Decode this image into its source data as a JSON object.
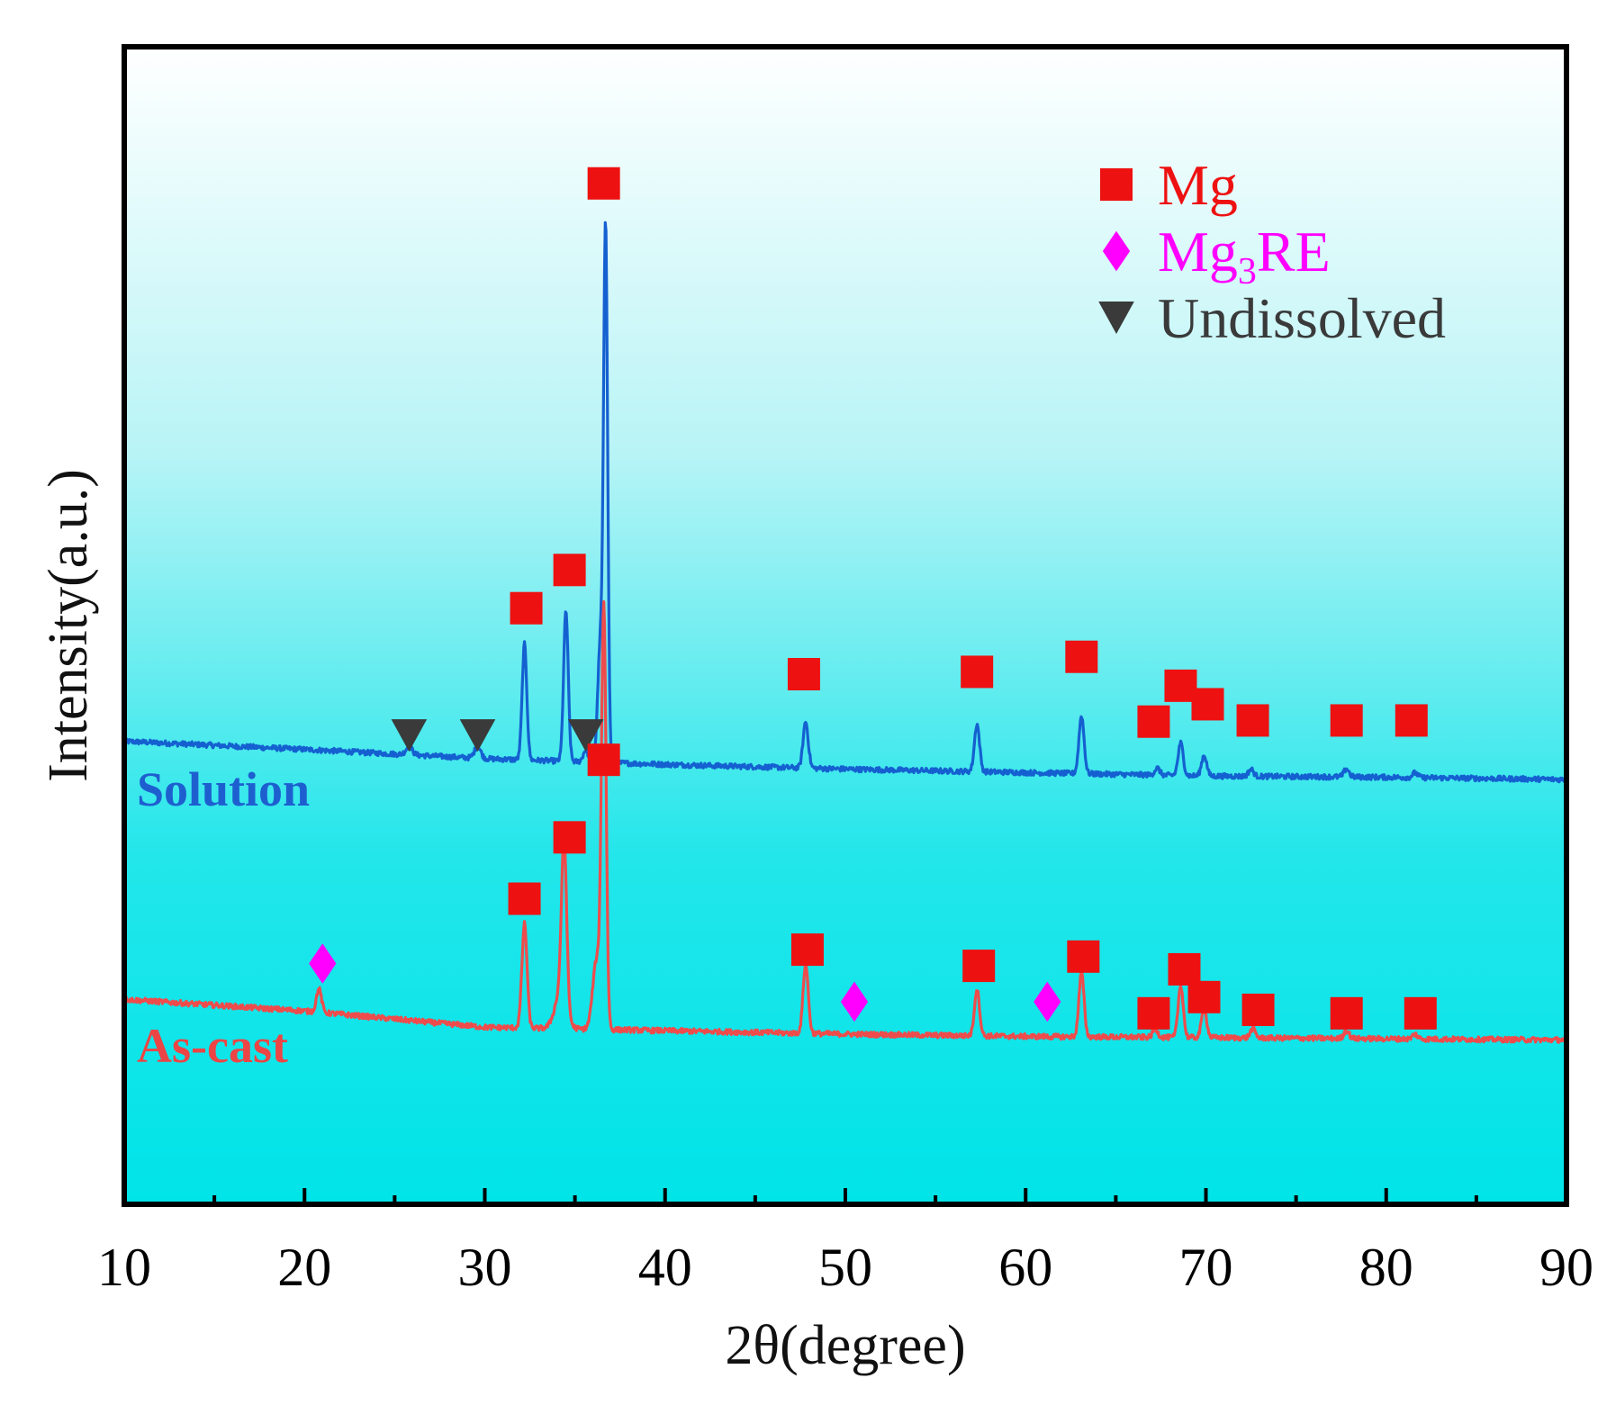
{
  "chart_data": {
    "type": "line",
    "title": "",
    "xlabel": "2θ(degree)",
    "ylabel": "Intensity(a.u.)",
    "xlim": [
      10,
      90
    ],
    "ylim": [
      0,
      100
    ],
    "x_ticks": [
      10,
      20,
      30,
      40,
      50,
      60,
      70,
      80,
      90
    ],
    "y_ticks_shown": false,
    "grid": false,
    "legend_position": "top-right",
    "background_gradient": [
      "#ffffff",
      "#00e8ec"
    ],
    "legend": [
      {
        "marker": "square",
        "color": "#ee1111",
        "label": "Mg",
        "label_main": "Mg",
        "label_sub": "",
        "label_tail": ""
      },
      {
        "marker": "diamond",
        "color": "#ff00ff",
        "label": "Mg3RE",
        "label_main": "Mg",
        "label_sub": "3",
        "label_tail": "RE"
      },
      {
        "marker": "triangle-down",
        "color": "#3a3a3a",
        "label": "Undissolved",
        "label_main": "Undissolved",
        "label_sub": "",
        "label_tail": ""
      }
    ],
    "series": [
      {
        "name": "Solution",
        "color": "#1560d0",
        "label_color": "#1e5fd0",
        "baseline": [
          [
            10,
            40.0
          ],
          [
            20,
            39.3
          ],
          [
            30,
            38.5
          ],
          [
            40,
            38.0
          ],
          [
            50,
            37.6
          ],
          [
            60,
            37.3
          ],
          [
            70,
            37.0
          ],
          [
            80,
            36.9
          ],
          [
            90,
            36.7
          ]
        ],
        "peaks": [
          {
            "x": 25.8,
            "h": 0.7,
            "w": 0.25
          },
          {
            "x": 29.6,
            "h": 1.0,
            "w": 0.25
          },
          {
            "x": 32.2,
            "h": 10.0,
            "w": 0.18
          },
          {
            "x": 34.5,
            "h": 13.0,
            "w": 0.18
          },
          {
            "x": 35.6,
            "h": 1.0,
            "w": 0.2
          },
          {
            "x": 36.7,
            "h": 46.0,
            "w": 0.16
          },
          {
            "x": 36.4,
            "h": 10.0,
            "w": 0.2
          },
          {
            "x": 47.8,
            "h": 4.0,
            "w": 0.2
          },
          {
            "x": 57.3,
            "h": 4.1,
            "w": 0.2
          },
          {
            "x": 63.1,
            "h": 5.0,
            "w": 0.2
          },
          {
            "x": 67.3,
            "h": 0.6,
            "w": 0.2
          },
          {
            "x": 68.6,
            "h": 2.8,
            "w": 0.2
          },
          {
            "x": 69.9,
            "h": 1.8,
            "w": 0.2
          },
          {
            "x": 72.5,
            "h": 0.6,
            "w": 0.2
          },
          {
            "x": 77.8,
            "h": 0.7,
            "w": 0.2
          },
          {
            "x": 81.6,
            "h": 0.4,
            "w": 0.2
          }
        ],
        "markers": [
          {
            "type": "triangle-down",
            "x": 25.8,
            "y": 40.5
          },
          {
            "type": "triangle-down",
            "x": 29.6,
            "y": 40.5
          },
          {
            "type": "triangle-down",
            "x": 35.6,
            "y": 40.5
          },
          {
            "type": "square",
            "x": 32.3,
            "y": 51.5
          },
          {
            "type": "square",
            "x": 34.7,
            "y": 54.8
          },
          {
            "type": "square",
            "x": 36.6,
            "y": 88.2
          },
          {
            "type": "square",
            "x": 47.7,
            "y": 45.8
          },
          {
            "type": "square",
            "x": 57.3,
            "y": 46.0
          },
          {
            "type": "square",
            "x": 63.1,
            "y": 47.3
          },
          {
            "type": "square",
            "x": 67.1,
            "y": 41.7
          },
          {
            "type": "square",
            "x": 68.6,
            "y": 44.8
          },
          {
            "type": "square",
            "x": 70.1,
            "y": 43.2
          },
          {
            "type": "square",
            "x": 72.6,
            "y": 41.8
          },
          {
            "type": "square",
            "x": 77.8,
            "y": 41.8
          },
          {
            "type": "square",
            "x": 81.4,
            "y": 41.8
          }
        ]
      },
      {
        "name": "As-cast",
        "color": "#ee4c4c",
        "label_color": "#ec4545",
        "baseline": [
          [
            10,
            17.7
          ],
          [
            20,
            16.7
          ],
          [
            30,
            15.3
          ],
          [
            40,
            15.0
          ],
          [
            50,
            14.7
          ],
          [
            60,
            14.5
          ],
          [
            70,
            14.4
          ],
          [
            80,
            14.3
          ],
          [
            90,
            14.2
          ]
        ],
        "peaks": [
          {
            "x": 20.8,
            "h": 2.0,
            "w": 0.2
          },
          {
            "x": 32.2,
            "h": 9.0,
            "w": 0.2
          },
          {
            "x": 34.4,
            "h": 14.0,
            "w": 0.2
          },
          {
            "x": 34.2,
            "h": 3.0,
            "w": 0.45
          },
          {
            "x": 36.6,
            "h": 36.0,
            "w": 0.18
          },
          {
            "x": 36.2,
            "h": 6.0,
            "w": 0.3
          },
          {
            "x": 47.8,
            "h": 6.0,
            "w": 0.2
          },
          {
            "x": 57.3,
            "h": 4.0,
            "w": 0.2
          },
          {
            "x": 63.1,
            "h": 5.5,
            "w": 0.2
          },
          {
            "x": 67.2,
            "h": 0.7,
            "w": 0.2
          },
          {
            "x": 68.6,
            "h": 4.5,
            "w": 0.2
          },
          {
            "x": 69.9,
            "h": 2.5,
            "w": 0.2
          },
          {
            "x": 72.6,
            "h": 0.8,
            "w": 0.2
          },
          {
            "x": 77.8,
            "h": 0.7,
            "w": 0.2
          },
          {
            "x": 81.6,
            "h": 0.4,
            "w": 0.2
          }
        ],
        "markers": [
          {
            "type": "diamond",
            "x": 21.0,
            "y": 20.8
          },
          {
            "type": "diamond",
            "x": 50.5,
            "y": 17.5
          },
          {
            "type": "diamond",
            "x": 61.2,
            "y": 17.5
          },
          {
            "type": "square",
            "x": 32.2,
            "y": 26.4
          },
          {
            "type": "square",
            "x": 34.7,
            "y": 31.7
          },
          {
            "type": "square",
            "x": 36.6,
            "y": 38.4
          },
          {
            "type": "square",
            "x": 47.9,
            "y": 22.0
          },
          {
            "type": "square",
            "x": 57.4,
            "y": 20.6
          },
          {
            "type": "square",
            "x": 63.2,
            "y": 21.4
          },
          {
            "type": "square",
            "x": 67.1,
            "y": 16.5
          },
          {
            "type": "square",
            "x": 68.8,
            "y": 20.3
          },
          {
            "type": "square",
            "x": 69.9,
            "y": 17.9
          },
          {
            "type": "square",
            "x": 72.9,
            "y": 16.8
          },
          {
            "type": "square",
            "x": 77.8,
            "y": 16.5
          },
          {
            "type": "square",
            "x": 81.9,
            "y": 16.5
          }
        ]
      }
    ]
  }
}
